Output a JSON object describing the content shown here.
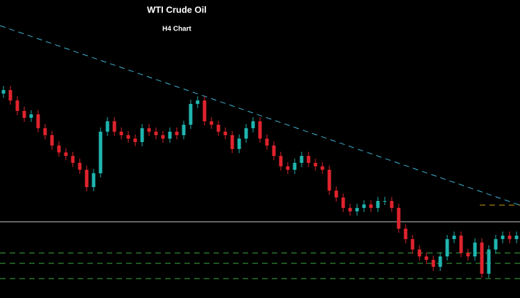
{
  "chart_data": {
    "type": "candlestick",
    "title": "WTI Crude Oil",
    "subtitle": "H4 Chart",
    "ylim": [
      0,
      430
    ],
    "up_color": "#1fb5b0",
    "down_color": "#e0232d",
    "open": [
      295,
      300,
      285,
      270,
      260,
      265,
      245,
      235,
      220,
      210,
      205,
      195,
      185,
      160,
      180,
      240,
      255,
      240,
      235,
      230,
      225,
      245,
      240,
      235,
      230,
      240,
      235,
      250,
      280,
      285,
      255,
      250,
      240,
      235,
      215,
      230,
      245,
      255,
      230,
      220,
      205,
      190,
      185,
      195,
      205,
      195,
      190,
      185,
      155,
      145,
      130,
      125,
      130,
      135,
      130,
      140,
      140,
      130,
      100,
      85,
      70,
      60,
      55,
      45,
      60,
      85,
      90,
      65,
      60,
      80,
      35,
      70,
      85,
      90,
      85
    ],
    "high": [
      306,
      306,
      291,
      276,
      271,
      271,
      251,
      241,
      226,
      216,
      211,
      201,
      191,
      186,
      246,
      261,
      261,
      246,
      241,
      236,
      251,
      251,
      246,
      241,
      246,
      246,
      256,
      286,
      291,
      291,
      261,
      256,
      246,
      241,
      236,
      251,
      261,
      261,
      236,
      226,
      211,
      196,
      201,
      211,
      211,
      201,
      196,
      191,
      161,
      151,
      136,
      136,
      141,
      141,
      146,
      146,
      146,
      136,
      106,
      91,
      76,
      66,
      61,
      66,
      91,
      96,
      96,
      71,
      86,
      86,
      76,
      91,
      96,
      96,
      96
    ],
    "low": [
      289,
      279,
      264,
      254,
      254,
      239,
      229,
      214,
      204,
      199,
      189,
      179,
      154,
      154,
      174,
      234,
      234,
      229,
      224,
      219,
      219,
      234,
      229,
      224,
      224,
      229,
      229,
      244,
      274,
      249,
      244,
      234,
      229,
      209,
      209,
      224,
      239,
      224,
      214,
      199,
      184,
      179,
      179,
      189,
      189,
      184,
      179,
      149,
      139,
      124,
      119,
      119,
      124,
      124,
      124,
      134,
      124,
      94,
      79,
      64,
      54,
      49,
      39,
      39,
      54,
      79,
      59,
      54,
      54,
      29,
      29,
      64,
      79,
      79,
      79
    ],
    "close": [
      300,
      285,
      270,
      260,
      265,
      245,
      235,
      220,
      210,
      205,
      195,
      185,
      160,
      180,
      240,
      255,
      240,
      235,
      230,
      225,
      245,
      240,
      235,
      230,
      240,
      235,
      250,
      280,
      285,
      255,
      250,
      240,
      235,
      215,
      230,
      245,
      255,
      230,
      220,
      205,
      190,
      185,
      195,
      205,
      195,
      190,
      185,
      155,
      145,
      130,
      125,
      130,
      135,
      130,
      140,
      140,
      130,
      100,
      85,
      70,
      60,
      55,
      45,
      60,
      85,
      90,
      65,
      60,
      80,
      35,
      70,
      85,
      90,
      85,
      90
    ],
    "trendline": {
      "values": [
        393,
        134
      ],
      "color": "#3fb8d8"
    },
    "levels": [
      {
        "value": 110,
        "color": "#cccccc",
        "dashed": false
      },
      {
        "value": 65,
        "color": "#3cb043",
        "dashed": true
      },
      {
        "value": 50,
        "color": "#3cb043",
        "dashed": true
      },
      {
        "value": 28,
        "color": "#3cb043",
        "dashed": true
      },
      {
        "value": 134,
        "color": "#d4a017",
        "dashed": true,
        "short": true
      }
    ]
  }
}
